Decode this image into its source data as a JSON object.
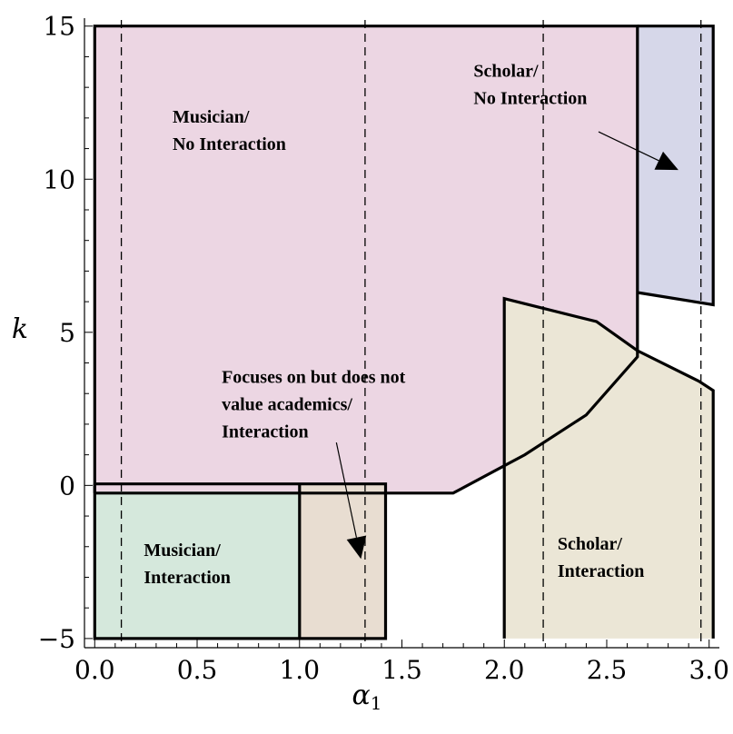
{
  "chart_data": {
    "type": "region",
    "xlabel": {
      "main": "α",
      "sub": "1"
    },
    "ylabel": "k",
    "xlim": [
      -0.05,
      3.05
    ],
    "ylim": [
      -5.3,
      15.2
    ],
    "xticks": [
      "0.0",
      "0.5",
      "1.0",
      "1.5",
      "2.0",
      "2.5",
      "3.0"
    ],
    "xtick_values": [
      0,
      0.5,
      1,
      1.5,
      2,
      2.5,
      3
    ],
    "yticks": [
      "−5",
      "0",
      "5",
      "10",
      "15"
    ],
    "ytick_values": [
      -5,
      0,
      5,
      10,
      15
    ],
    "reference_lines_x": [
      0.13,
      1.32,
      2.19,
      2.96
    ],
    "regions": [
      {
        "id": "musician-no-interaction",
        "fill": "#ecd6e3",
        "points": [
          [
            0,
            15
          ],
          [
            2.65,
            15
          ],
          [
            2.65,
            4.2
          ],
          [
            2.4,
            2.3
          ],
          [
            2.1,
            1.0
          ],
          [
            1.75,
            -0.25
          ],
          [
            0,
            -0.25
          ]
        ]
      },
      {
        "id": "scholar-no-interaction",
        "fill": "#d6d7e9",
        "points": [
          [
            2.65,
            15
          ],
          [
            3.02,
            15
          ],
          [
            3.02,
            5.9
          ],
          [
            2.65,
            6.3
          ]
        ]
      },
      {
        "id": "scholar-interaction",
        "fill": "#ebe6d6",
        "points": [
          [
            2.0,
            6.1
          ],
          [
            2.45,
            5.35
          ],
          [
            2.65,
            4.4
          ],
          [
            2.95,
            3.4
          ],
          [
            3.02,
            3.1
          ],
          [
            3.02,
            -5
          ],
          [
            2.0,
            -5
          ]
        ]
      },
      {
        "id": "musician-interaction",
        "fill": "#d5e8dc",
        "points": [
          [
            0,
            -0.2
          ],
          [
            1.0,
            -0.2
          ],
          [
            1.0,
            -5
          ],
          [
            0,
            -5
          ]
        ]
      },
      {
        "id": "focuses-interaction",
        "fill": "#e8ddd1",
        "points": [
          [
            1.0,
            0.05
          ],
          [
            1.42,
            0.05
          ],
          [
            1.42,
            -5
          ],
          [
            1.0,
            -5
          ]
        ]
      }
    ],
    "boundaries": [
      {
        "id": "outer-top-box",
        "points": [
          [
            0,
            -0.25
          ],
          [
            0,
            15
          ],
          [
            2.65,
            15
          ],
          [
            2.65,
            4.2
          ],
          [
            2.4,
            2.3
          ],
          [
            2.1,
            1.0
          ],
          [
            1.75,
            -0.25
          ],
          [
            0,
            -0.25
          ]
        ]
      },
      {
        "id": "scholar-top-box",
        "points": [
          [
            2.65,
            15
          ],
          [
            3.02,
            15
          ],
          [
            3.02,
            5.9
          ],
          [
            2.65,
            6.3
          ]
        ]
      },
      {
        "id": "lower-left-box",
        "points": [
          [
            0,
            0.05
          ],
          [
            1.42,
            0.05
          ],
          [
            1.42,
            -5
          ],
          [
            0,
            -5
          ],
          [
            0,
            0.05
          ]
        ]
      },
      {
        "id": "divider-1",
        "points": [
          [
            1.0,
            0.05
          ],
          [
            1.0,
            -5
          ]
        ]
      },
      {
        "id": "scholar-interaction-box",
        "points": [
          [
            2.0,
            -5
          ],
          [
            2.0,
            6.1
          ],
          [
            2.45,
            5.35
          ],
          [
            2.65,
            4.4
          ],
          [
            2.95,
            3.4
          ],
          [
            3.02,
            3.1
          ],
          [
            3.02,
            -5
          ]
        ]
      }
    ],
    "annotations": [
      {
        "id": "label-musician-no-interaction",
        "lines": [
          "Musician/",
          "No Interaction"
        ],
        "x": 0.38,
        "y": 11.85
      },
      {
        "id": "label-scholar-no-interaction",
        "lines": [
          "Scholar/",
          "No Interaction"
        ],
        "x": 1.85,
        "y": 13.35
      },
      {
        "id": "label-focuses",
        "lines": [
          "Focuses on but does not",
          "value academics/",
          "Interaction"
        ],
        "x": 0.62,
        "y": 3.35
      },
      {
        "id": "label-musician-interaction",
        "lines": [
          "Musician/",
          "Interaction"
        ],
        "x": 0.24,
        "y": -2.3
      },
      {
        "id": "label-scholar-interaction",
        "lines": [
          "Scholar/",
          "Interaction"
        ],
        "x": 2.26,
        "y": -2.1
      }
    ],
    "arrows": [
      {
        "id": "arrow-scholar",
        "from": [
          2.46,
          11.55
        ],
        "to": [
          2.85,
          10.3
        ]
      },
      {
        "id": "arrow-focuses",
        "from": [
          1.18,
          1.4
        ],
        "to": [
          1.3,
          -2.4
        ]
      }
    ]
  }
}
